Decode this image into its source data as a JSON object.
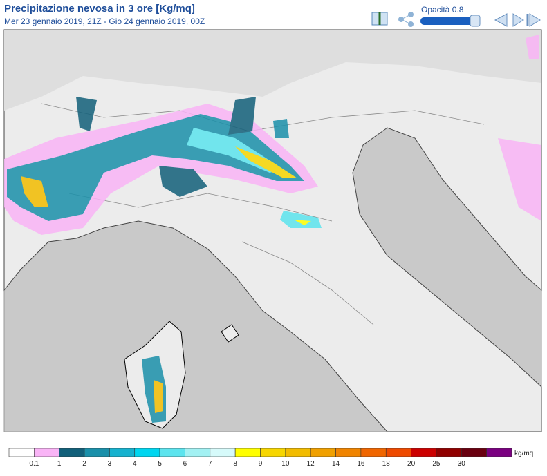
{
  "header": {
    "title": "Precipitazione nevosa in 3 ore [Kg/mq]",
    "subtitle": "Mer 23 gennaio 2019, 21Z - Gio 24 gennaio 2019, 00Z"
  },
  "controls": {
    "opacity_label": "Opacità 0.8"
  },
  "legend": {
    "unit": "kg/mq",
    "ticks": [
      0.1,
      1,
      2,
      3,
      4,
      5,
      6,
      7,
      8,
      9,
      10,
      12,
      14,
      16,
      18,
      20,
      25,
      30
    ],
    "colors": [
      "#ffffff",
      "#f9b4f6",
      "#12607a",
      "#1a90aa",
      "#16b2cf",
      "#00d6f0",
      "#5ce4ee",
      "#a2f1f3",
      "#d6fafa",
      "#ffff00",
      "#f7d600",
      "#f2bc00",
      "#f0a000",
      "#f08400",
      "#f06600",
      "#ee4a00",
      "#cc0000",
      "#900000",
      "#6a0010",
      "#7a0080"
    ]
  }
}
